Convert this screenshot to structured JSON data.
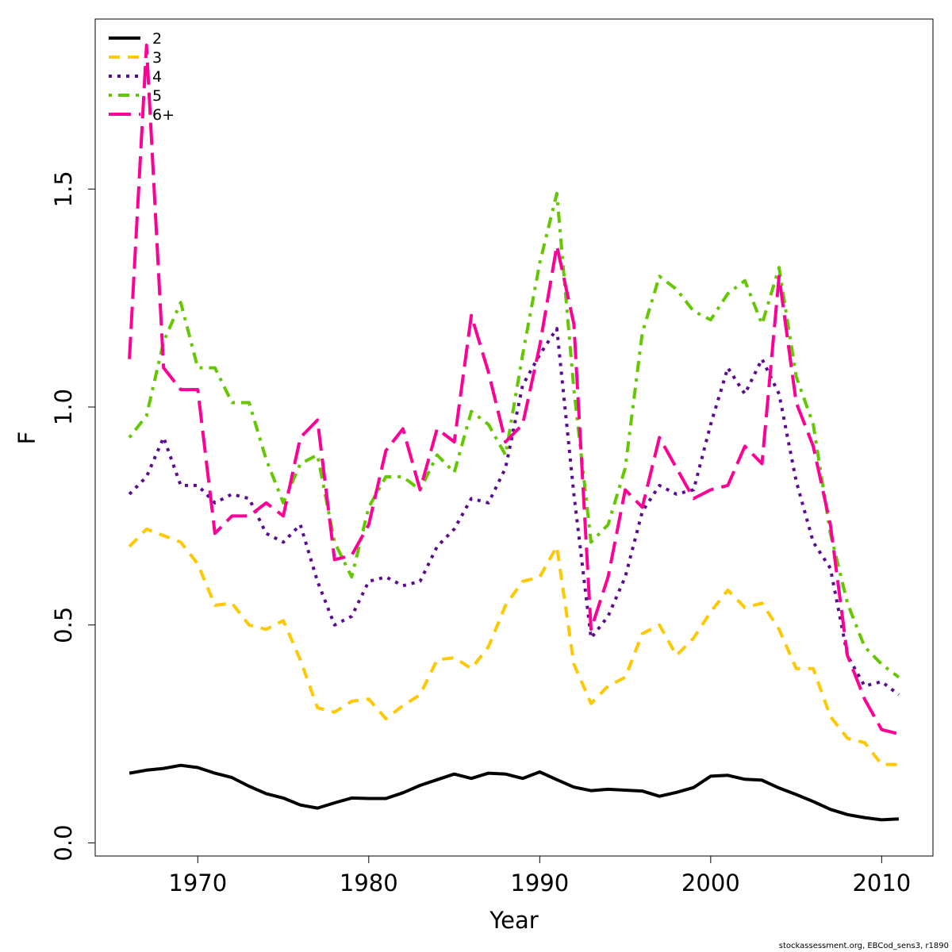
{
  "chart_data": {
    "type": "line",
    "title": "",
    "xlabel": "Year",
    "ylabel": "F",
    "xlim": [
      1964,
      2013
    ],
    "ylim": [
      -0.03,
      1.89
    ],
    "xticks": [
      1970,
      1980,
      1990,
      2000,
      2010
    ],
    "yticks": [
      0.0,
      0.5,
      1.0,
      1.5
    ],
    "ytick_labels": [
      "0.0",
      "0.5",
      "1.0",
      "1.5"
    ],
    "xtick_labels": [
      "1970",
      "1980",
      "1990",
      "2000",
      "2010"
    ],
    "legend_position": "top-left",
    "grid": false,
    "x": [
      1966,
      1967,
      1968,
      1969,
      1970,
      1971,
      1972,
      1973,
      1974,
      1975,
      1976,
      1977,
      1978,
      1979,
      1980,
      1981,
      1982,
      1983,
      1984,
      1985,
      1986,
      1987,
      1988,
      1989,
      1990,
      1991,
      1992,
      1993,
      1994,
      1995,
      1996,
      1997,
      1998,
      1999,
      2000,
      2001,
      2002,
      2003,
      2004,
      2005,
      2006,
      2007,
      2008,
      2009,
      2010,
      2011
    ],
    "series": [
      {
        "name": "2",
        "color": "#000000",
        "dash": "solid",
        "values": [
          0.16,
          0.167,
          0.171,
          0.178,
          0.173,
          0.16,
          0.15,
          0.13,
          0.113,
          0.103,
          0.087,
          0.08,
          0.092,
          0.103,
          0.102,
          0.102,
          0.115,
          0.132,
          0.145,
          0.158,
          0.148,
          0.16,
          0.158,
          0.148,
          0.163,
          0.145,
          0.128,
          0.12,
          0.123,
          0.121,
          0.119,
          0.107,
          0.116,
          0.127,
          0.153,
          0.155,
          0.146,
          0.144,
          0.126,
          0.111,
          0.095,
          0.077,
          0.065,
          0.058,
          0.053,
          0.055
        ]
      },
      {
        "name": "3",
        "color": "#FFC800",
        "dash": "dashed",
        "values": [
          0.68,
          0.72,
          0.705,
          0.69,
          0.64,
          0.545,
          0.55,
          0.5,
          0.49,
          0.51,
          0.42,
          0.31,
          0.3,
          0.325,
          0.33,
          0.285,
          0.315,
          0.34,
          0.42,
          0.425,
          0.4,
          0.45,
          0.545,
          0.6,
          0.61,
          0.68,
          0.41,
          0.32,
          0.36,
          0.38,
          0.48,
          0.5,
          0.43,
          0.47,
          0.53,
          0.58,
          0.54,
          0.55,
          0.49,
          0.4,
          0.4,
          0.29,
          0.24,
          0.23,
          0.18,
          0.18
        ]
      },
      {
        "name": "4",
        "color": "#5C0A96",
        "dash": "dotted",
        "values": [
          0.8,
          0.84,
          0.93,
          0.82,
          0.82,
          0.78,
          0.8,
          0.79,
          0.71,
          0.69,
          0.73,
          0.6,
          0.5,
          0.52,
          0.6,
          0.61,
          0.59,
          0.6,
          0.68,
          0.72,
          0.79,
          0.78,
          0.86,
          1.05,
          1.12,
          1.18,
          0.8,
          0.47,
          0.52,
          0.61,
          0.76,
          0.82,
          0.8,
          0.81,
          0.96,
          1.09,
          1.03,
          1.11,
          1.03,
          0.83,
          0.69,
          0.63,
          0.43,
          0.36,
          0.37,
          0.34
        ]
      },
      {
        "name": "5",
        "color": "#64C800",
        "dash": "dashdot",
        "values": [
          0.93,
          0.98,
          1.15,
          1.24,
          1.09,
          1.09,
          1.01,
          1.01,
          0.88,
          0.78,
          0.87,
          0.89,
          0.69,
          0.61,
          0.77,
          0.84,
          0.84,
          0.81,
          0.89,
          0.85,
          0.99,
          0.96,
          0.89,
          1.12,
          1.33,
          1.49,
          1.04,
          0.69,
          0.73,
          0.86,
          1.17,
          1.3,
          1.27,
          1.22,
          1.2,
          1.26,
          1.29,
          1.19,
          1.32,
          1.07,
          0.96,
          0.71,
          0.55,
          0.45,
          0.41,
          0.38
        ]
      },
      {
        "name": "6+",
        "color": "#FF0096",
        "dash": "longdash",
        "values": [
          1.11,
          1.83,
          1.09,
          1.04,
          1.04,
          0.71,
          0.75,
          0.75,
          0.78,
          0.75,
          0.93,
          0.97,
          0.65,
          0.66,
          0.73,
          0.9,
          0.95,
          0.81,
          0.95,
          0.92,
          1.21,
          1.08,
          0.92,
          0.96,
          1.14,
          1.37,
          1.19,
          0.49,
          0.61,
          0.81,
          0.77,
          0.93,
          0.86,
          0.79,
          0.81,
          0.82,
          0.91,
          0.87,
          1.3,
          1.01,
          0.91,
          0.73,
          0.43,
          0.33,
          0.26,
          0.25
        ]
      }
    ]
  },
  "footer": "stockassessment.org, EBCod_sens3, r1890"
}
